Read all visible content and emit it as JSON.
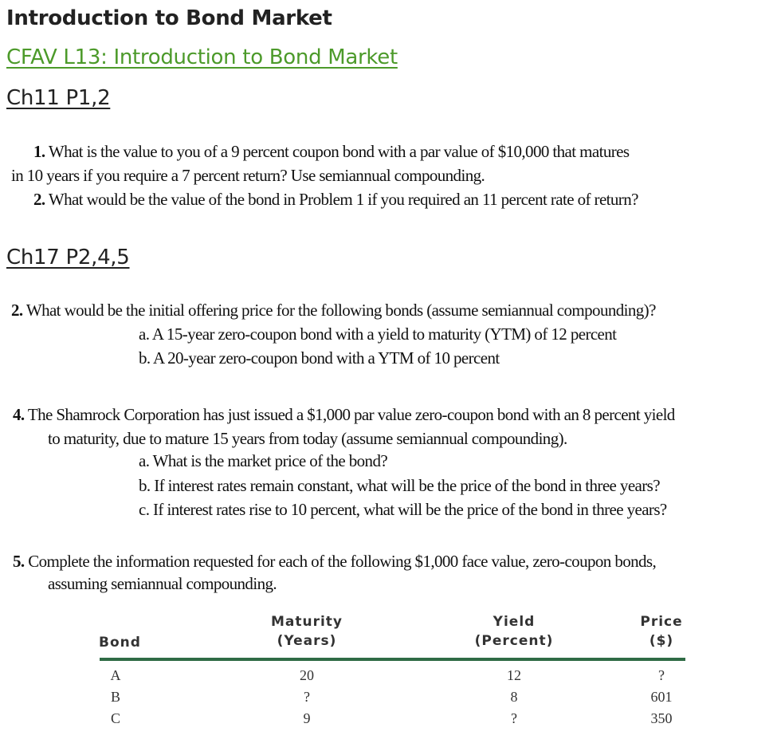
{
  "header": {
    "title": "Introduction to Bond Market",
    "link_text": "CFAV L13: Introduction to Bond Market"
  },
  "ch11": {
    "heading": "Ch11 P1,2",
    "q1_num": "1.",
    "q1_line1": "What is the value to you of a 9 percent coupon bond with a par value of $10,000 that matures",
    "q1_line2": "in 10 years if you require a 7 percent return? Use semiannual compounding.",
    "q2_num": "2.",
    "q2_text": "What would be the value of the bond in Problem 1 if you required an 11 percent rate of return?"
  },
  "ch17": {
    "heading": "Ch17 P2,4,5",
    "p2_num": "2.",
    "p2_text": "What would be the initial offering price for the following bonds (assume semiannual compounding)?",
    "p2_a": "a. A 15-year zero-coupon bond with a yield to maturity (YTM) of 12 percent",
    "p2_b": "b. A 20-year zero-coupon bond with a YTM of 10 percent",
    "p4_num": "4.",
    "p4_line1": "The Shamrock Corporation has just issued a $1,000 par value zero-coupon bond with an 8 percent yield",
    "p4_line2": "to maturity, due to mature 15 years from today (assume semiannual compounding).",
    "p4_a": "a. What is the market price of the bond?",
    "p4_b": "b. If interest rates remain constant, what will be the price of the bond in three years?",
    "p4_c": "c. If interest rates rise to 10 percent, what will be the price of the bond in three years?",
    "p5_num": "5.",
    "p5_line1": "Complete the information requested for each of the following $1,000 face value, zero-coupon bonds,",
    "p5_line2": "assuming semiannual compounding."
  },
  "table": {
    "headers": {
      "bond": "Bond",
      "maturity_1": "Maturity",
      "maturity_2": "(Years)",
      "yield_1": "Yield",
      "yield_2": "(Percent)",
      "price_1": "Price",
      "price_2": "($)"
    },
    "rows": [
      {
        "bond": "A",
        "maturity": "20",
        "yield": "12",
        "price": "?"
      },
      {
        "bond": "B",
        "maturity": "?",
        "yield": "8",
        "price": "601"
      },
      {
        "bond": "C",
        "maturity": "9",
        "yield": "?",
        "price": "350"
      }
    ]
  },
  "colors": {
    "link": "#4c9a2a",
    "table_rule": "#2f6b45"
  }
}
